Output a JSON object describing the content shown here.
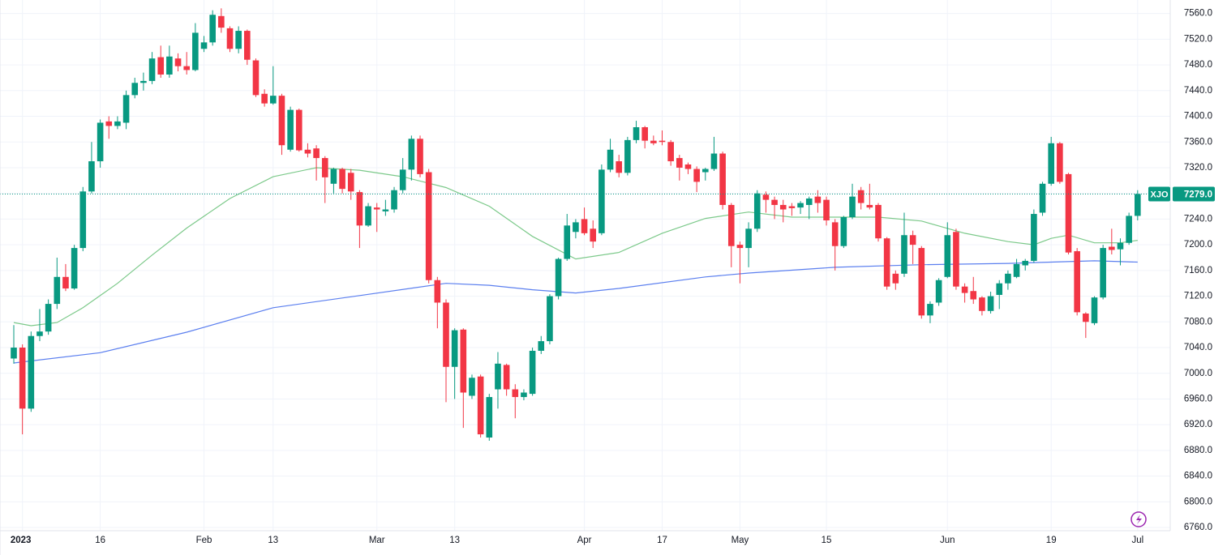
{
  "chart_data": {
    "type": "candlestick",
    "categories": [
      null,
      "2023",
      null,
      null,
      null,
      null,
      null,
      null,
      null,
      null,
      "16",
      null,
      null,
      null,
      null,
      null,
      null,
      null,
      null,
      null,
      null,
      null,
      "Feb",
      null,
      null,
      null,
      null,
      null,
      null,
      null,
      "13",
      null,
      null,
      null,
      null,
      null,
      null,
      null,
      null,
      null,
      null,
      null,
      "Mar",
      null,
      null,
      null,
      null,
      null,
      null,
      null,
      null,
      "13",
      null,
      null,
      null,
      null,
      null,
      null,
      null,
      null,
      null,
      null,
      null,
      null,
      null,
      null,
      "Apr",
      null,
      null,
      null,
      null,
      null,
      null,
      null,
      null,
      "17",
      null,
      null,
      null,
      null,
      null,
      null,
      null,
      null,
      "May",
      null,
      null,
      null,
      null,
      null,
      null,
      null,
      null,
      null,
      "15",
      null,
      null,
      null,
      null,
      null,
      null,
      null,
      null,
      null,
      null,
      null,
      null,
      null,
      "Jun",
      null,
      null,
      null,
      null,
      null,
      null,
      null,
      null,
      null,
      null,
      null,
      "19",
      null,
      null,
      null,
      null,
      null,
      null,
      null,
      null,
      null,
      "Jul"
    ],
    "open": [
      7023,
      7040,
      6945,
      7058,
      7065,
      7108,
      7150,
      7132,
      7195,
      7283,
      7330,
      7392,
      7385,
      7390,
      7433,
      7452,
      7455,
      7492,
      7465,
      7490,
      7478,
      7472,
      7505,
      7515,
      7556,
      7537,
      7505,
      7533,
      7487,
      7435,
      7420,
      7432,
      7348,
      7410,
      7348,
      7350,
      7335,
      7295,
      7318,
      7312,
      7282,
      7230,
      7258,
      7252,
      7255,
      7285,
      7317,
      7365,
      7313,
      7145,
      7110,
      7010,
      7068,
      6965,
      6995,
      6900,
      6975,
      7013,
      6975,
      6963,
      6968,
      7035,
      7050,
      7120,
      7178,
      7220,
      7240,
      7225,
      7218,
      7317,
      7330,
      7312,
      7363,
      7383,
      7362,
      7362,
      7360,
      7335,
      7325,
      7318,
      7313,
      7318,
      7342,
      7262,
      7200,
      7195,
      7225,
      7278,
      7270,
      7262,
      7260,
      7258,
      7262,
      7275,
      7270,
      7235,
      7198,
      7243,
      7285,
      7262,
      7262,
      7210,
      7155,
      7155,
      7215,
      7195,
      7090,
      7110,
      7150,
      7220,
      7135,
      7128,
      7118,
      7097,
      7122,
      7140,
      7150,
      7168,
      7175,
      7250,
      7295,
      7358,
      7310,
      7190,
      7093,
      7078,
      7118,
      7197,
      7193,
      7203,
      7245
    ],
    "high": [
      7075,
      7045,
      7065,
      7100,
      7115,
      7180,
      7170,
      7200,
      7290,
      7360,
      7395,
      7400,
      7400,
      7440,
      7460,
      7468,
      7500,
      7510,
      7510,
      7498,
      7500,
      7545,
      7525,
      7565,
      7568,
      7540,
      7540,
      7535,
      7490,
      7442,
      7478,
      7435,
      7415,
      7412,
      7358,
      7355,
      7338,
      7320,
      7320,
      7318,
      7285,
      7265,
      7265,
      7270,
      7290,
      7335,
      7370,
      7370,
      7318,
      7150,
      7115,
      7070,
      7070,
      6998,
      6998,
      6968,
      7033,
      7015,
      6983,
      6975,
      7040,
      7058,
      7123,
      7180,
      7248,
      7240,
      7258,
      7238,
      7325,
      7365,
      7340,
      7368,
      7393,
      7385,
      7370,
      7378,
      7363,
      7340,
      7328,
      7322,
      7320,
      7368,
      7345,
      7265,
      7205,
      7235,
      7285,
      7283,
      7275,
      7270,
      7265,
      7268,
      7275,
      7285,
      7275,
      7240,
      7245,
      7295,
      7290,
      7295,
      7265,
      7212,
      7160,
      7250,
      7222,
      7198,
      7112,
      7148,
      7235,
      7225,
      7140,
      7150,
      7120,
      7127,
      7145,
      7160,
      7178,
      7178,
      7255,
      7298,
      7368,
      7360,
      7312,
      7195,
      7095,
      7120,
      7200,
      7225,
      7210,
      7250,
      7285
    ],
    "low": [
      7015,
      6905,
      6940,
      7050,
      7060,
      7100,
      7128,
      7130,
      7190,
      7280,
      7320,
      7365,
      7380,
      7380,
      7428,
      7440,
      7450,
      7460,
      7460,
      7470,
      7465,
      7470,
      7500,
      7510,
      7530,
      7500,
      7498,
      7480,
      7430,
      7415,
      7418,
      7340,
      7345,
      7345,
      7336,
      7300,
      7265,
      7280,
      7280,
      7270,
      7195,
      7228,
      7220,
      7245,
      7250,
      7280,
      7300,
      7305,
      7140,
      7070,
      6955,
      6960,
      6915,
      6960,
      6900,
      6895,
      6945,
      6965,
      6930,
      6958,
      6965,
      7030,
      7045,
      7115,
      7175,
      7210,
      7215,
      7195,
      7215,
      7313,
      7305,
      7308,
      7358,
      7350,
      7355,
      7355,
      7323,
      7300,
      7310,
      7282,
      7300,
      7315,
      7255,
      7165,
      7140,
      7165,
      7220,
      7250,
      7240,
      7235,
      7245,
      7248,
      7240,
      7250,
      7230,
      7160,
      7195,
      7240,
      7255,
      7255,
      7205,
      7130,
      7130,
      7150,
      7170,
      7085,
      7078,
      7105,
      7148,
      7130,
      7110,
      7108,
      7090,
      7093,
      7100,
      7130,
      7148,
      7160,
      7172,
      7245,
      7292,
      7295,
      7185,
      7090,
      7055,
      7075,
      7115,
      7185,
      7168,
      7200,
      7238
    ],
    "close": [
      7040,
      6945,
      7058,
      7065,
      7108,
      7150,
      7132,
      7195,
      7283,
      7330,
      7390,
      7385,
      7392,
      7433,
      7452,
      7455,
      7490,
      7465,
      7493,
      7478,
      7472,
      7530,
      7515,
      7558,
      7538,
      7505,
      7533,
      7488,
      7433,
      7420,
      7432,
      7355,
      7410,
      7347,
      7342,
      7335,
      7305,
      7318,
      7287,
      7283,
      7230,
      7260,
      7255,
      7255,
      7285,
      7317,
      7365,
      7310,
      7145,
      7110,
      7010,
      7067,
      6970,
      6993,
      6905,
      6963,
      7015,
      6975,
      6963,
      6970,
      7035,
      7050,
      7120,
      7178,
      7230,
      7235,
      7218,
      7205,
      7317,
      7348,
      7312,
      7363,
      7383,
      7362,
      7358,
      7360,
      7330,
      7320,
      7318,
      7298,
      7318,
      7342,
      7262,
      7198,
      7195,
      7225,
      7280,
      7270,
      7262,
      7255,
      7257,
      7265,
      7272,
      7265,
      7238,
      7198,
      7243,
      7275,
      7265,
      7258,
      7210,
      7135,
      7140,
      7215,
      7200,
      7090,
      7108,
      7145,
      7215,
      7135,
      7125,
      7115,
      7097,
      7120,
      7140,
      7155,
      7170,
      7175,
      7248,
      7295,
      7358,
      7298,
      7188,
      7095,
      7080,
      7118,
      7195,
      7192,
      7203,
      7245,
      7279
    ],
    "up_color": "#089981",
    "down_color": "#f23645",
    "lines": [
      {
        "color": "#7cc98a",
        "x": [
          0,
          2,
          5,
          8,
          12,
          16,
          20,
          25,
          30,
          35,
          40,
          45,
          50,
          55,
          60,
          65,
          70,
          75,
          80,
          85,
          90,
          95,
          100,
          105,
          110,
          115,
          118,
          120,
          122,
          125,
          128,
          130
        ],
        "values": [
          7079,
          7074,
          7079,
          7102,
          7140,
          7184,
          7226,
          7272,
          7306,
          7320,
          7316,
          7306,
          7289,
          7260,
          7213,
          7178,
          7188,
          7218,
          7241,
          7251,
          7243,
          7243,
          7243,
          7237,
          7218,
          7205,
          7200,
          7210,
          7215,
          7203,
          7203,
          7207
        ]
      },
      {
        "color": "#5b7fef",
        "x": [
          0,
          10,
          20,
          30,
          40,
          50,
          55,
          60,
          65,
          70,
          80,
          85,
          95,
          105,
          115,
          120,
          125,
          130
        ],
        "values": [
          7016,
          7032,
          7064,
          7102,
          7121,
          7140,
          7137,
          7130,
          7125,
          7132,
          7150,
          7156,
          7165,
          7169,
          7171,
          7173,
          7175,
          7173
        ]
      }
    ],
    "last_price": {
      "symbol": "XJO",
      "value": 7279,
      "label": "7279.0"
    },
    "ylim": [
      6755,
      7581
    ],
    "yticks": [
      {
        "value": 6760,
        "label": "6760.0"
      },
      {
        "value": 6800,
        "label": "6800.0"
      },
      {
        "value": 6840,
        "label": "6840.0"
      },
      {
        "value": 6880,
        "label": "6880.0"
      },
      {
        "value": 6920,
        "label": "6920.0"
      },
      {
        "value": 6960,
        "label": "6960.0"
      },
      {
        "value": 7000,
        "label": "7000.0"
      },
      {
        "value": 7040,
        "label": "7040.0"
      },
      {
        "value": 7080,
        "label": "7080.0"
      },
      {
        "value": 7120,
        "label": "7120.0"
      },
      {
        "value": 7160,
        "label": "7160.0"
      },
      {
        "value": 7200,
        "label": "7200.0"
      },
      {
        "value": 7240,
        "label": "7240.0"
      },
      {
        "value": 7280,
        "label": "7280.0"
      },
      {
        "value": 7320,
        "label": "7320.0"
      },
      {
        "value": 7360,
        "label": "7360.0"
      },
      {
        "value": 7400,
        "label": "7400.0"
      },
      {
        "value": 7440,
        "label": "7440.0"
      },
      {
        "value": 7480,
        "label": "7480.0"
      },
      {
        "value": 7520,
        "label": "7520.0"
      },
      {
        "value": 7560,
        "label": "7560.0"
      }
    ],
    "grid": true
  }
}
